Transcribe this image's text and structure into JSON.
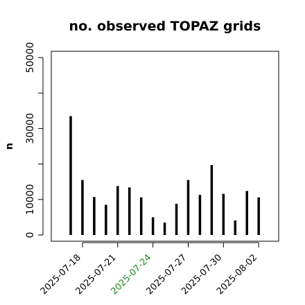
{
  "chart_data": {
    "type": "bar",
    "title": "no. observed TOPAZ grids",
    "xlabel": "",
    "ylabel": "n",
    "ylim": [
      0,
      50000
    ],
    "yticks": [
      0,
      10000,
      30000,
      50000
    ],
    "yminor": [
      20000,
      40000
    ],
    "x": [
      "2025-07-17",
      "2025-07-18",
      "2025-07-19",
      "2025-07-20",
      "2025-07-21",
      "2025-07-22",
      "2025-07-23",
      "2025-07-24",
      "2025-07-25",
      "2025-07-26",
      "2025-07-27",
      "2025-07-28",
      "2025-07-29",
      "2025-07-30",
      "2025-07-31",
      "2025-08-01",
      "2025-08-02"
    ],
    "values": [
      33500,
      15500,
      10700,
      8500,
      13800,
      13400,
      10600,
      5000,
      3500,
      8800,
      15500,
      11300,
      19700,
      11600,
      4100,
      12400,
      10600
    ],
    "xtick_labels": [
      {
        "label": "2025-07-18",
        "date": "2025-07-18",
        "color": "#000000"
      },
      {
        "label": "2025-07-21",
        "date": "2025-07-21",
        "color": "#000000"
      },
      {
        "label": "2025-07-24",
        "date": "2025-07-24",
        "color": "#228B22"
      },
      {
        "label": "2025-07-27",
        "date": "2025-07-27",
        "color": "#000000"
      },
      {
        "label": "2025-07-30",
        "date": "2025-07-30",
        "color": "#000000"
      },
      {
        "label": "2025-08-02",
        "date": "2025-08-02",
        "color": "#000000"
      }
    ],
    "bar_color": "#000000",
    "grid": false,
    "legend": "none"
  }
}
